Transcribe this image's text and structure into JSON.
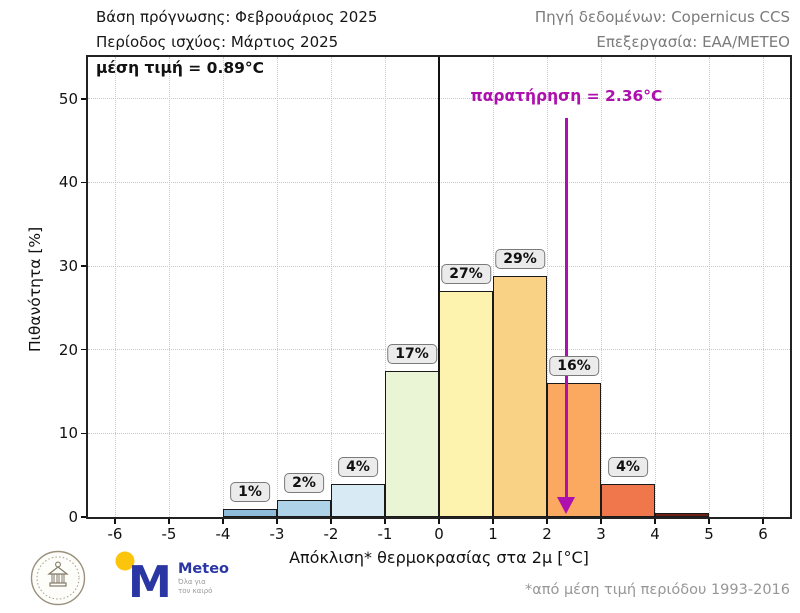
{
  "header": {
    "left_line1": "Βάση πρόγνωσης: Φεβρουάριος 2025",
    "left_line2": "Περίοδος ισχύος: Μάρτιος 2025",
    "right_line1": "Πηγή δεδομένων: Copernicus CCS",
    "right_line2": "Επεξεργασία: ΕΑΑ/ΜΕΤΕΟ"
  },
  "chart_data": {
    "type": "bar",
    "title": "",
    "xlabel": "Απόκλιση* θερμοκρασίας στα 2μ [°C]",
    "ylabel": "Πιθανότητα [%]",
    "xlim": [
      -6.5,
      6.5
    ],
    "ylim": [
      0,
      55
    ],
    "x_ticks": [
      -6,
      -5,
      -4,
      -3,
      -2,
      -1,
      0,
      1,
      2,
      3,
      4,
      5,
      6
    ],
    "y_ticks": [
      0,
      10,
      20,
      30,
      40,
      50
    ],
    "grid": "dotted",
    "zero_line_x": 0,
    "bars": [
      {
        "x_start": -4,
        "x_end": -3,
        "value": 1,
        "label": "1%",
        "color": "#8fbcda"
      },
      {
        "x_start": -3,
        "x_end": -2,
        "value": 2,
        "label": "2%",
        "color": "#aed2e8"
      },
      {
        "x_start": -2,
        "x_end": -1,
        "value": 4,
        "label": "4%",
        "color": "#d8ebf4"
      },
      {
        "x_start": -1,
        "x_end": 0,
        "value": 17.4,
        "label": "17%",
        "color": "#eaf5d5"
      },
      {
        "x_start": 0,
        "x_end": 1,
        "value": 27,
        "label": "27%",
        "color": "#fdf3ae"
      },
      {
        "x_start": 1,
        "x_end": 2,
        "value": 28.8,
        "label": "29%",
        "color": "#f9d285"
      },
      {
        "x_start": 2,
        "x_end": 3,
        "value": 16,
        "label": "16%",
        "color": "#fba961"
      },
      {
        "x_start": 3,
        "x_end": 4,
        "value": 4,
        "label": "4%",
        "color": "#f0774b"
      },
      {
        "x_start": 4,
        "x_end": 5,
        "value": 0.5,
        "label": "",
        "color": "#6f2014"
      }
    ],
    "mean_annotation": "μέση τιμή = 0.89°C",
    "observation_annotation": "παρατήρηση = 2.36°C",
    "observation_x": 2.36,
    "annotation_color": "#ad10ad"
  },
  "footer": {
    "footnote": "*από μέση τιμή περιόδου 1993-2016",
    "meteo_logo_name": "Meteo",
    "meteo_logo_tagline_line1": "Όλα για",
    "meteo_logo_tagline_line2": "τον καιρό"
  }
}
